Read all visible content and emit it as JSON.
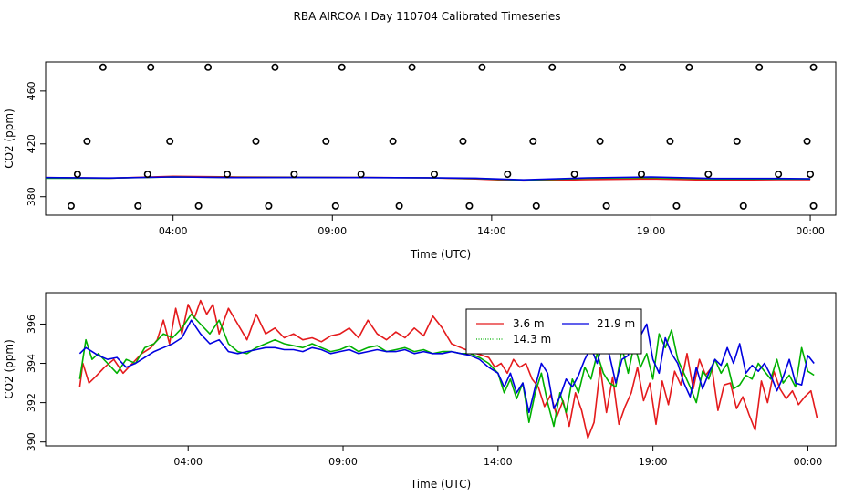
{
  "page_title": "RBA AIRCOA I  Day 110704  Calibrated Timeseries",
  "chart_data": [
    {
      "type": "line+scatter",
      "xlabel": "Time (UTC)",
      "ylabel": "CO2 (ppm)",
      "xlim": [
        0.0,
        24.8
      ],
      "ylim": [
        366,
        482
      ],
      "xticks": [
        4,
        9,
        14,
        19,
        24
      ],
      "xtick_labels": [
        "04:00",
        "09:00",
        "14:00",
        "19:00",
        "00:00"
      ],
      "yticks": [
        380,
        420,
        460
      ],
      "ytick_labels": [
        "380",
        "420",
        "460"
      ],
      "scatter": {
        "name": "calibration points",
        "x": [
          1.8,
          3.3,
          5.1,
          7.2,
          9.3,
          11.5,
          13.7,
          15.9,
          18.1,
          20.2,
          22.4,
          24.1,
          1.3,
          3.9,
          6.6,
          8.8,
          10.9,
          13.1,
          15.3,
          17.4,
          19.6,
          21.7,
          23.9,
          1.0,
          3.2,
          5.7,
          7.8,
          9.9,
          12.2,
          14.5,
          16.6,
          18.7,
          20.8,
          23.0,
          24.0,
          0.8,
          2.9,
          4.8,
          7.0,
          9.1,
          11.1,
          13.3,
          15.4,
          17.6,
          19.8,
          21.9,
          24.1
        ],
        "y": [
          478,
          478,
          478,
          478,
          478,
          478,
          478,
          478,
          478,
          478,
          478,
          478,
          422,
          422,
          422,
          422,
          422,
          422,
          422,
          422,
          422,
          422,
          422,
          397,
          397,
          397,
          397,
          397,
          397,
          397,
          397,
          397,
          397,
          397,
          397,
          373,
          373,
          373,
          373,
          373,
          373,
          373,
          373,
          373,
          373,
          373,
          373
        ]
      },
      "series": [
        {
          "name": "3.6 m",
          "color": "#e41a1c",
          "x": [
            0.0,
            2,
            4,
            6,
            8,
            10,
            12,
            13.5,
            15,
            17,
            19,
            21,
            23,
            24
          ],
          "y": [
            394.5,
            394,
            395.5,
            395,
            394.8,
            394.6,
            394.3,
            393.5,
            392,
            393,
            393.5,
            392.5,
            393,
            393
          ]
        },
        {
          "name": "14.3 m",
          "color": "#00b000",
          "x": [
            0.0,
            2,
            4,
            6,
            8,
            10,
            12,
            13.5,
            15,
            17,
            19,
            21,
            23,
            24
          ],
          "y": [
            394,
            394,
            395,
            394.6,
            394.6,
            394.5,
            394.3,
            393.8,
            392.5,
            394,
            394.5,
            393.5,
            393.5,
            393.5
          ]
        },
        {
          "name": "21.9 m",
          "color": "#0000e0",
          "x": [
            0.0,
            2,
            4,
            6,
            8,
            10,
            12,
            13.5,
            15,
            17,
            19,
            21,
            23,
            24
          ],
          "y": [
            394.5,
            394.2,
            395,
            394.5,
            394.6,
            394.5,
            394.4,
            394,
            392.8,
            394.3,
            395,
            393.8,
            393.8,
            393.6
          ]
        }
      ]
    },
    {
      "type": "line",
      "xlabel": "Time (UTC)",
      "ylabel": "CO2 (ppm)",
      "xlim": [
        -0.6,
        24.9
      ],
      "ylim": [
        389.8,
        397.6
      ],
      "xticks": [
        4,
        9,
        14,
        19,
        24
      ],
      "xtick_labels": [
        "04:00",
        "09:00",
        "14:00",
        "19:00",
        "00:00"
      ],
      "yticks": [
        390,
        392,
        394,
        396
      ],
      "ytick_labels": [
        "390",
        "392",
        "394",
        "396"
      ],
      "legend": {
        "placement": "top-right-center",
        "ncol": 2
      },
      "series": [
        {
          "name": "3.6 m",
          "color": "#e41a1c",
          "x": [
            0.5,
            0.6,
            0.8,
            1.0,
            1.3,
            1.6,
            1.9,
            2.2,
            2.5,
            2.8,
            3.0,
            3.2,
            3.4,
            3.6,
            3.8,
            4.0,
            4.2,
            4.4,
            4.6,
            4.8,
            5.0,
            5.3,
            5.6,
            5.9,
            6.2,
            6.5,
            6.8,
            7.1,
            7.4,
            7.7,
            8.0,
            8.3,
            8.6,
            8.9,
            9.2,
            9.5,
            9.8,
            10.1,
            10.4,
            10.7,
            11.0,
            11.3,
            11.6,
            11.9,
            12.2,
            12.5,
            12.8,
            13.1,
            13.3,
            13.5,
            13.7,
            13.9,
            14.1,
            14.3,
            14.5,
            14.7,
            14.9,
            15.1,
            15.3,
            15.5,
            15.7,
            15.9,
            16.1,
            16.3,
            16.5,
            16.7,
            16.9,
            17.1,
            17.3,
            17.5,
            17.7,
            17.9,
            18.1,
            18.3,
            18.5,
            18.7,
            18.9,
            19.1,
            19.3,
            19.5,
            19.7,
            19.9,
            20.1,
            20.3,
            20.5,
            20.7,
            20.9,
            21.1,
            21.3,
            21.5,
            21.7,
            21.9,
            22.1,
            22.3,
            22.5,
            22.7,
            22.9,
            23.1,
            23.3,
            23.5,
            23.7,
            23.9,
            24.1,
            24.3
          ],
          "y": [
            392.8,
            394.0,
            393.0,
            393.3,
            393.8,
            394.2,
            393.5,
            394.0,
            394.5,
            394.8,
            395.2,
            396.2,
            395.0,
            396.8,
            395.5,
            397.0,
            396.3,
            397.2,
            396.5,
            397.0,
            395.5,
            396.8,
            396.0,
            395.2,
            396.5,
            395.5,
            395.8,
            395.3,
            395.5,
            395.2,
            395.3,
            395.1,
            395.4,
            395.5,
            395.8,
            395.3,
            396.2,
            395.5,
            395.2,
            395.6,
            395.3,
            395.8,
            395.4,
            396.4,
            395.8,
            395.0,
            394.8,
            394.6,
            394.5,
            394.4,
            394.3,
            393.8,
            394.0,
            393.5,
            394.2,
            393.8,
            394.0,
            393.2,
            392.8,
            391.8,
            392.4,
            391.3,
            392.1,
            390.8,
            392.5,
            391.6,
            390.2,
            391.0,
            393.8,
            391.5,
            393.3,
            390.9,
            391.8,
            392.5,
            393.8,
            392.1,
            393.0,
            390.9,
            393.1,
            391.9,
            393.6,
            392.9,
            394.5,
            392.7,
            394.2,
            393.4,
            393.8,
            391.6,
            392.9,
            393.0,
            391.7,
            392.3,
            391.4,
            390.6,
            393.1,
            392.0,
            393.6,
            392.7,
            392.2,
            392.6,
            391.9,
            392.3,
            392.6,
            391.2
          ]
        },
        {
          "name": "14.3 m",
          "color": "#00b000",
          "x": [
            0.5,
            0.7,
            0.9,
            1.1,
            1.4,
            1.7,
            2.0,
            2.3,
            2.6,
            2.9,
            3.2,
            3.5,
            3.8,
            4.1,
            4.4,
            4.7,
            5.0,
            5.3,
            5.6,
            5.9,
            6.2,
            6.5,
            6.8,
            7.1,
            7.4,
            7.7,
            8.0,
            8.3,
            8.6,
            8.9,
            9.2,
            9.5,
            9.8,
            10.1,
            10.4,
            10.7,
            11.0,
            11.3,
            11.6,
            11.9,
            12.2,
            12.5,
            12.8,
            13.1,
            13.4,
            13.7,
            14.0,
            14.2,
            14.4,
            14.6,
            14.8,
            15.0,
            15.2,
            15.4,
            15.6,
            15.8,
            16.0,
            16.2,
            16.4,
            16.6,
            16.8,
            17.0,
            17.2,
            17.4,
            17.6,
            17.8,
            18.0,
            18.2,
            18.4,
            18.6,
            18.8,
            19.0,
            19.2,
            19.4,
            19.6,
            19.8,
            20.0,
            20.2,
            20.4,
            20.6,
            20.8,
            21.0,
            21.2,
            21.4,
            21.6,
            21.8,
            22.0,
            22.2,
            22.4,
            22.6,
            22.8,
            23.0,
            23.2,
            23.4,
            23.6,
            23.8,
            24.0,
            24.2
          ],
          "y": [
            393.2,
            395.2,
            394.2,
            394.5,
            394.0,
            393.5,
            394.2,
            394.0,
            394.8,
            395.0,
            395.5,
            395.3,
            395.8,
            396.5,
            396.0,
            395.5,
            396.2,
            395.0,
            394.6,
            394.5,
            394.8,
            395.0,
            395.2,
            395.0,
            394.9,
            394.8,
            395.0,
            394.8,
            394.6,
            394.7,
            394.9,
            394.6,
            394.8,
            394.9,
            394.6,
            394.7,
            394.8,
            394.6,
            394.7,
            394.5,
            394.6,
            394.6,
            394.5,
            394.5,
            394.3,
            394.0,
            393.5,
            392.5,
            393.2,
            392.2,
            393.0,
            391.0,
            392.5,
            393.5,
            392.0,
            390.8,
            392.5,
            391.5,
            393.2,
            392.5,
            393.8,
            393.2,
            394.5,
            393.5,
            393.0,
            392.8,
            394.8,
            393.5,
            395.0,
            393.8,
            394.5,
            393.2,
            395.5,
            394.8,
            395.7,
            394.2,
            393.5,
            392.8,
            392.0,
            393.6,
            393.2,
            394.2,
            393.5,
            394.0,
            392.7,
            392.9,
            393.4,
            393.2,
            394.0,
            393.6,
            393.2,
            394.2,
            393.0,
            393.4,
            392.8,
            394.8,
            393.6,
            393.4
          ]
        },
        {
          "name": "21.9 m",
          "color": "#0000e0",
          "x": [
            0.5,
            0.7,
            0.9,
            1.1,
            1.4,
            1.7,
            2.0,
            2.3,
            2.6,
            2.9,
            3.2,
            3.5,
            3.8,
            4.1,
            4.4,
            4.7,
            5.0,
            5.3,
            5.6,
            5.9,
            6.2,
            6.5,
            6.8,
            7.1,
            7.4,
            7.7,
            8.0,
            8.3,
            8.6,
            8.9,
            9.2,
            9.5,
            9.8,
            10.1,
            10.4,
            10.7,
            11.0,
            11.3,
            11.6,
            11.9,
            12.2,
            12.5,
            12.8,
            13.1,
            13.4,
            13.7,
            14.0,
            14.2,
            14.4,
            14.6,
            14.8,
            15.0,
            15.2,
            15.4,
            15.6,
            15.8,
            16.0,
            16.2,
            16.4,
            16.6,
            16.8,
            17.0,
            17.2,
            17.4,
            17.6,
            17.8,
            18.0,
            18.2,
            18.4,
            18.6,
            18.8,
            19.0,
            19.2,
            19.4,
            19.6,
            19.8,
            20.0,
            20.2,
            20.4,
            20.6,
            20.8,
            21.0,
            21.2,
            21.4,
            21.6,
            21.8,
            22.0,
            22.2,
            22.4,
            22.6,
            22.8,
            23.0,
            23.2,
            23.4,
            23.6,
            23.8,
            24.0,
            24.2
          ],
          "y": [
            394.5,
            394.8,
            394.6,
            394.4,
            394.2,
            394.3,
            393.8,
            394.0,
            394.3,
            394.6,
            394.8,
            395.0,
            395.3,
            396.2,
            395.5,
            395.0,
            395.2,
            394.6,
            394.5,
            394.6,
            394.7,
            394.8,
            394.8,
            394.7,
            394.7,
            394.6,
            394.8,
            394.7,
            394.5,
            394.6,
            394.7,
            394.5,
            394.6,
            394.7,
            394.6,
            394.6,
            394.7,
            394.5,
            394.6,
            394.5,
            394.5,
            394.6,
            394.5,
            394.4,
            394.2,
            393.8,
            393.5,
            392.8,
            393.5,
            392.5,
            393.0,
            391.5,
            392.8,
            394.0,
            393.5,
            391.7,
            392.3,
            393.2,
            392.8,
            393.4,
            394.2,
            394.8,
            394.0,
            395.2,
            394.4,
            393.0,
            394.2,
            394.4,
            396.2,
            395.4,
            396.0,
            394.2,
            393.5,
            395.3,
            394.5,
            394.0,
            393.0,
            392.3,
            393.8,
            392.7,
            393.5,
            394.2,
            393.9,
            394.8,
            394.0,
            395.0,
            393.5,
            393.9,
            393.6,
            394.0,
            393.4,
            392.6,
            393.3,
            394.2,
            393.0,
            392.9,
            394.4,
            394.0
          ]
        }
      ]
    }
  ]
}
